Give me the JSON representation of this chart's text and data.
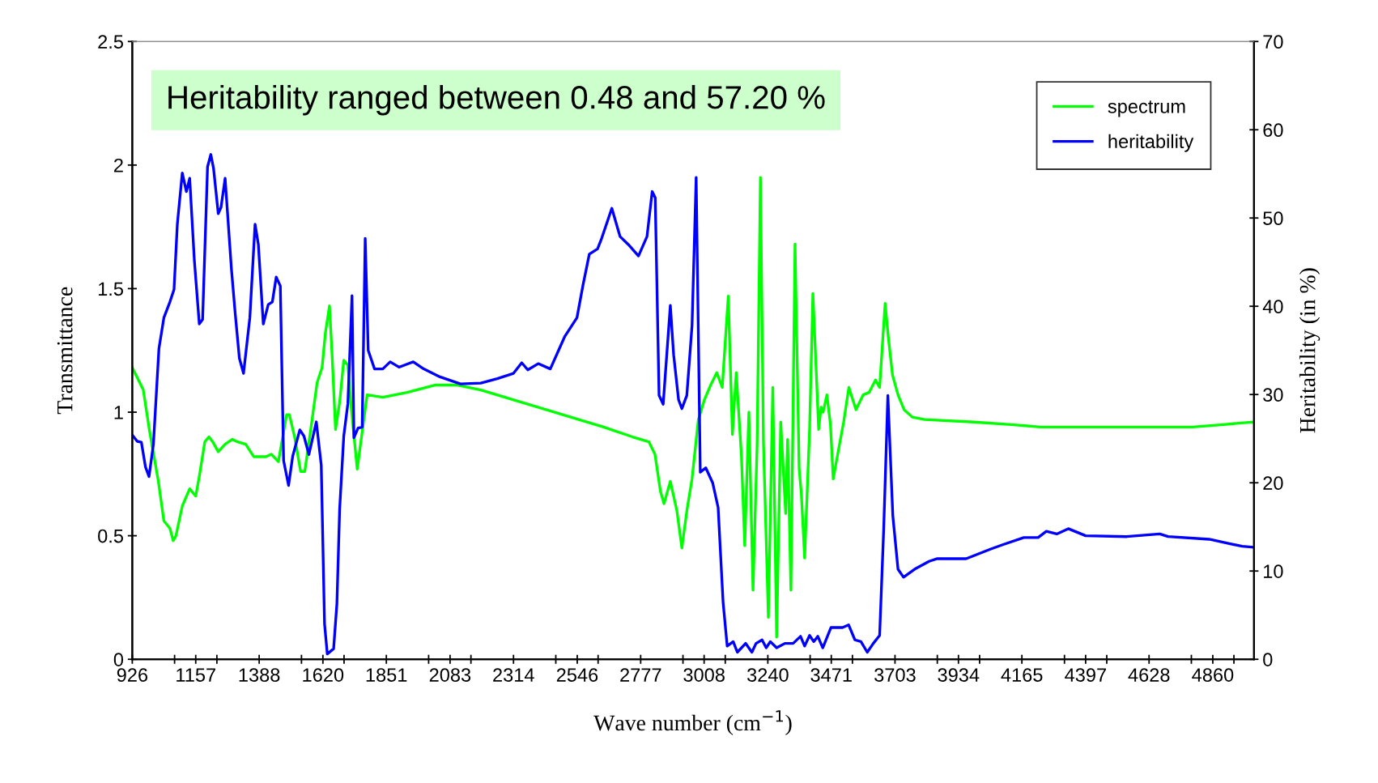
{
  "chart_data": {
    "type": "line",
    "xlabel": "Wave number (cm$^{−1}$)",
    "ylabel": "Transmittance",
    "y2label": "Heritability (in %)",
    "annotations": [
      "Heritability ranged between 0.48 and 57.20 %"
    ],
    "xlim": [
      926,
      5010
    ],
    "ylim": [
      0,
      2.5
    ],
    "y2lim": [
      0,
      70
    ],
    "xticks": [
      926,
      {
        "value": 1080,
        "label": null
      },
      1157,
      {
        "value": 1234,
        "label": null
      },
      1388,
      {
        "value": 1542,
        "label": null
      },
      1620,
      {
        "value": 1697,
        "label": null
      },
      1851,
      {
        "value": 2005,
        "label": null
      },
      2083,
      {
        "value": 2159,
        "label": null
      },
      2314,
      {
        "value": 2468,
        "label": null
      },
      2546,
      {
        "value": 2622,
        "label": null
      },
      2777,
      {
        "value": 2931,
        "label": null
      },
      3008,
      {
        "value": 3085,
        "label": null
      },
      3240,
      {
        "value": 3394,
        "label": null
      },
      3471,
      {
        "value": 3548,
        "label": null
      },
      3703,
      {
        "value": 3857,
        "label": null
      },
      3934,
      {
        "value": 4011,
        "label": null
      },
      4165,
      {
        "value": 4320,
        "label": null
      },
      4397,
      {
        "value": 4474,
        "label": null
      },
      4628,
      {
        "value": 4782,
        "label": null
      },
      4860,
      {
        "value": 4937,
        "label": null
      }
    ],
    "yticks": [
      0,
      0.5,
      1,
      1.5,
      2,
      2.5
    ],
    "y2ticks": [
      0,
      10,
      20,
      30,
      40,
      50,
      60,
      70
    ],
    "grid": false,
    "legend": "top right",
    "marker": "none",
    "line_style": "solid",
    "series": [
      {
        "name": "spectrum",
        "color": "#00ff00",
        "x": [
          926,
          944,
          966,
          988,
          1021,
          1041,
          1063,
          1075,
          1085,
          1108,
          1135,
          1157,
          1170,
          1190,
          1205,
          1219,
          1239,
          1264,
          1290,
          1309,
          1339,
          1368,
          1413,
          1432,
          1458,
          1488,
          1498,
          1517,
          1539,
          1554,
          1577,
          1599,
          1617,
          1629,
          1644,
          1654,
          1666,
          1681,
          1696,
          1711,
          1723,
          1745,
          1763,
          1781,
          1838,
          1927,
          2031,
          2106,
          2195,
          2344,
          2493,
          2642,
          2747,
          2807,
          2829,
          2849,
          2862,
          2885,
          2909,
          2927,
          2945,
          2964,
          2987,
          3009,
          3032,
          3054,
          3074,
          3096,
          3111,
          3125,
          3144,
          3156,
          3171,
          3186,
          3201,
          3213,
          3224,
          3242,
          3258,
          3272,
          3287,
          3305,
          3312,
          3324,
          3339,
          3354,
          3362,
          3374,
          3392,
          3404,
          3416,
          3425,
          3434,
          3441,
          3455,
          3468,
          3478,
          3501,
          3516,
          3535,
          3561,
          3587,
          3609,
          3632,
          3647,
          3667,
          3679,
          3694,
          3714,
          3736,
          3766,
          3811,
          3991,
          4126,
          4232,
          4471,
          4786,
          4899,
          5004
        ],
        "values": [
          1.18,
          1.14,
          1.09,
          0.93,
          0.72,
          0.56,
          0.53,
          0.48,
          0.5,
          0.62,
          0.69,
          0.66,
          0.74,
          0.88,
          0.9,
          0.88,
          0.84,
          0.87,
          0.89,
          0.88,
          0.87,
          0.82,
          0.82,
          0.83,
          0.8,
          0.99,
          0.99,
          0.9,
          0.76,
          0.76,
          0.94,
          1.12,
          1.18,
          1.32,
          1.43,
          1.22,
          0.93,
          1.04,
          1.21,
          1.19,
          1.02,
          0.77,
          0.92,
          1.07,
          1.06,
          1.08,
          1.11,
          1.11,
          1.09,
          1.04,
          0.99,
          0.94,
          0.9,
          0.88,
          0.83,
          0.68,
          0.63,
          0.72,
          0.6,
          0.45,
          0.6,
          0.73,
          0.97,
          1.05,
          1.11,
          1.16,
          1.1,
          1.47,
          0.91,
          1.16,
          0.82,
          0.46,
          1.0,
          0.28,
          0.87,
          1.95,
          0.88,
          0.17,
          1.1,
          0.09,
          0.96,
          0.59,
          0.89,
          0.28,
          1.68,
          0.77,
          0.67,
          0.41,
          0.93,
          1.48,
          1.17,
          0.93,
          1.02,
          1.0,
          1.07,
          0.95,
          0.73,
          0.87,
          0.96,
          1.1,
          1.01,
          1.07,
          1.08,
          1.13,
          1.1,
          1.44,
          1.3,
          1.15,
          1.07,
          1.01,
          0.98,
          0.97,
          0.96,
          0.95,
          0.94,
          0.94,
          0.94,
          0.95,
          0.96
        ]
      },
      {
        "name": "heritability",
        "color": "#0000ff",
        "axis": "y2",
        "x": [
          926,
          944,
          959,
          974,
          987,
          1003,
          1023,
          1041,
          1063,
          1078,
          1090,
          1108,
          1123,
          1135,
          1152,
          1170,
          1182,
          1200,
          1212,
          1222,
          1239,
          1249,
          1264,
          1287,
          1301,
          1316,
          1331,
          1354,
          1373,
          1385,
          1403,
          1421,
          1436,
          1450,
          1465,
          1477,
          1495,
          1510,
          1536,
          1551,
          1569,
          1596,
          1614,
          1626,
          1636,
          1659,
          1671,
          1681,
          1696,
          1711,
          1726,
          1733,
          1748,
          1763,
          1774,
          1785,
          1808,
          1838,
          1865,
          1897,
          1949,
          1987,
          2046,
          2121,
          2195,
          2255,
          2314,
          2344,
          2366,
          2404,
          2448,
          2478,
          2501,
          2545,
          2567,
          2590,
          2620,
          2635,
          2672,
          2702,
          2732,
          2769,
          2800,
          2819,
          2830,
          2844,
          2859,
          2885,
          2897,
          2915,
          2927,
          2945,
          2964,
          2979,
          2994,
          3014,
          3039,
          3059,
          3077,
          3092,
          3114,
          3129,
          3159,
          3182,
          3197,
          3219,
          3234,
          3249,
          3272,
          3302,
          3332,
          3359,
          3374,
          3392,
          3407,
          3422,
          3440,
          3470,
          3512,
          3534,
          3557,
          3579,
          3602,
          3624,
          3647,
          3662,
          3677,
          3695,
          3714,
          3734,
          3774,
          3827,
          3857,
          3962,
          4052,
          4097,
          4172,
          4224,
          4254,
          4292,
          4334,
          4397,
          4547,
          4667,
          4697,
          4847,
          4907,
          4967,
          5004
        ],
        "values": [
          25.4,
          24.7,
          24.6,
          21.8,
          20.7,
          24.4,
          35.2,
          38.7,
          40.5,
          41.9,
          49.3,
          55.1,
          53.0,
          54.5,
          45.2,
          38.0,
          38.5,
          55.8,
          57.2,
          55.6,
          50.5,
          51.2,
          54.5,
          44.2,
          39.1,
          34.1,
          32.4,
          38.7,
          49.3,
          47.0,
          38.0,
          40.2,
          40.5,
          43.3,
          42.3,
          22.5,
          19.7,
          23.0,
          26.0,
          25.3,
          23.2,
          26.9,
          22.0,
          4.0,
          0.6,
          1.2,
          6.3,
          17.0,
          25.3,
          29.0,
          41.2,
          25.1,
          26.2,
          26.3,
          47.7,
          35.0,
          32.9,
          32.9,
          33.7,
          33.1,
          33.7,
          32.9,
          32.0,
          31.2,
          31.3,
          31.8,
          32.4,
          33.6,
          32.8,
          33.5,
          32.9,
          35.0,
          36.6,
          38.7,
          42.4,
          45.9,
          46.5,
          47.7,
          51.1,
          47.9,
          47.0,
          45.7,
          47.9,
          53.0,
          52.3,
          29.9,
          28.9,
          40.1,
          34.5,
          29.4,
          28.4,
          29.9,
          37.8,
          54.6,
          21.2,
          21.7,
          20.0,
          17.2,
          6.5,
          1.5,
          2.0,
          0.8,
          1.8,
          0.8,
          1.8,
          2.2,
          1.3,
          2.0,
          1.3,
          1.8,
          1.8,
          2.6,
          1.5,
          2.7,
          2.0,
          2.6,
          1.3,
          3.6,
          3.6,
          3.9,
          2.2,
          2.0,
          0.8,
          1.8,
          2.7,
          14.9,
          29.9,
          16.3,
          10.2,
          9.3,
          10.2,
          11.1,
          11.4,
          11.4,
          12.5,
          13.0,
          13.8,
          13.8,
          14.5,
          14.2,
          14.8,
          14.0,
          13.9,
          14.2,
          13.9,
          13.6,
          13.2,
          12.8,
          12.7
        ]
      }
    ]
  }
}
